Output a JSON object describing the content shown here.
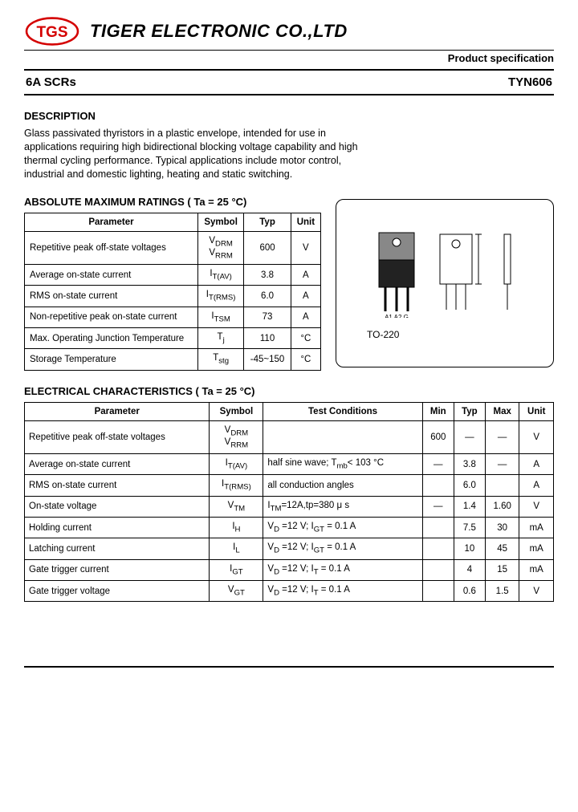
{
  "header": {
    "logo_text": "TGS",
    "logo_color": "#d40000",
    "company": "TIGER ELECTRONIC CO.,LTD",
    "spec_label": "Product  specification"
  },
  "title": {
    "left": "6A SCRs",
    "right": "TYN606"
  },
  "description": {
    "heading": "DESCRIPTION",
    "body": "Glass passivated thyristors in a plastic envelope, intended for use in applications requiring high bidirectional blocking voltage capability and high thermal cycling performance. Typical applications include motor control, industrial and domestic lighting, heating and static switching."
  },
  "amr": {
    "heading": "ABSOLUTE MAXIMUM RATINGS ( Ta = 25 °C)",
    "cols": [
      "Parameter",
      "Symbol",
      "Typ",
      "Unit"
    ],
    "rows": [
      {
        "param": "Repetitive peak off-state voltages",
        "symbol_html": "V<sub>DRM</sub><br>V<sub>RRM</sub>",
        "typ": "600",
        "unit": "V"
      },
      {
        "param": "Average on-state current",
        "symbol_html": "I<sub>T(AV)</sub>",
        "typ": "3.8",
        "unit": "A"
      },
      {
        "param": "RMS on-state current",
        "symbol_html": "I<sub>T(RMS)</sub>",
        "typ": "6.0",
        "unit": "A"
      },
      {
        "param": "Non-repetitive peak on-state current",
        "symbol_html": "I<sub>TSM</sub>",
        "typ": "73",
        "unit": "A"
      },
      {
        "param": "Max. Operating Junction Temperature",
        "symbol_html": "T<sub>j</sub>",
        "typ": "110",
        "unit": "°C"
      },
      {
        "param": "Storage Temperature",
        "symbol_html": "T<sub>stg</sub>",
        "typ": "-45~150",
        "unit": "°C"
      }
    ]
  },
  "package": {
    "name": "TO-220",
    "pins": "A1  A2  G"
  },
  "ec": {
    "heading": "ELECTRICAL CHARACTERISTICS ( Ta = 25 °C)",
    "cols": [
      "Parameter",
      "Symbol",
      "Test  Conditions",
      "Min",
      "Typ",
      "Max",
      "Unit"
    ],
    "rows": [
      {
        "param": "Repetitive peak off-state voltages",
        "symbol_html": "V<sub>DRM</sub><br>V<sub>RRM</sub>",
        "cond": "",
        "min": "600",
        "typ": "—",
        "max": "—",
        "unit": "V"
      },
      {
        "param": "Average on-state current",
        "symbol_html": "I<sub>T(AV)</sub>",
        "cond": "half sine wave; T<sub>mb</sub>< 103 °C",
        "min": "—",
        "typ": "3.8",
        "max": "—",
        "unit": "A"
      },
      {
        "param": "RMS on-state current",
        "symbol_html": "I<sub>T(RMS)</sub>",
        "cond": "all conduction angles",
        "min": "",
        "typ": "6.0",
        "max": "",
        "unit": "A"
      },
      {
        "param": "On-state voltage",
        "symbol_html": "V<sub>TM</sub>",
        "cond": "I<sub>TM</sub>=12A,tp=380 μ s",
        "min": "—",
        "typ": "1.4",
        "max": "1.60",
        "unit": "V"
      },
      {
        "param": "Holding current",
        "symbol_html": "I<sub>H</sub>",
        "cond": "V<sub>D</sub> =12 V; I<sub>GT</sub> = 0.1 A",
        "min": "",
        "typ": "7.5",
        "max": "30",
        "unit": "mA"
      },
      {
        "param": "Latching current",
        "symbol_html": "I<sub>L</sub>",
        "cond": "V<sub>D</sub> =12 V; I<sub>GT</sub> = 0.1 A",
        "min": "",
        "typ": "10",
        "max": "45",
        "unit": "mA"
      },
      {
        "param": "Gate trigger current",
        "symbol_html": "I<sub>GT</sub>",
        "cond": "V<sub>D</sub> =12 V; I<sub>T</sub> = 0.1 A",
        "min": "",
        "typ": "4",
        "max": "15",
        "unit": "mA"
      },
      {
        "param": "Gate trigger voltage",
        "symbol_html": "V<sub>GT</sub>",
        "cond": "V<sub>D</sub> =12 V; I<sub>T</sub> = 0.1 A",
        "min": "",
        "typ": "0.6",
        "max": "1.5",
        "unit": "V"
      }
    ]
  },
  "colors": {
    "text": "#000000",
    "border": "#000000",
    "bg": "#ffffff"
  }
}
